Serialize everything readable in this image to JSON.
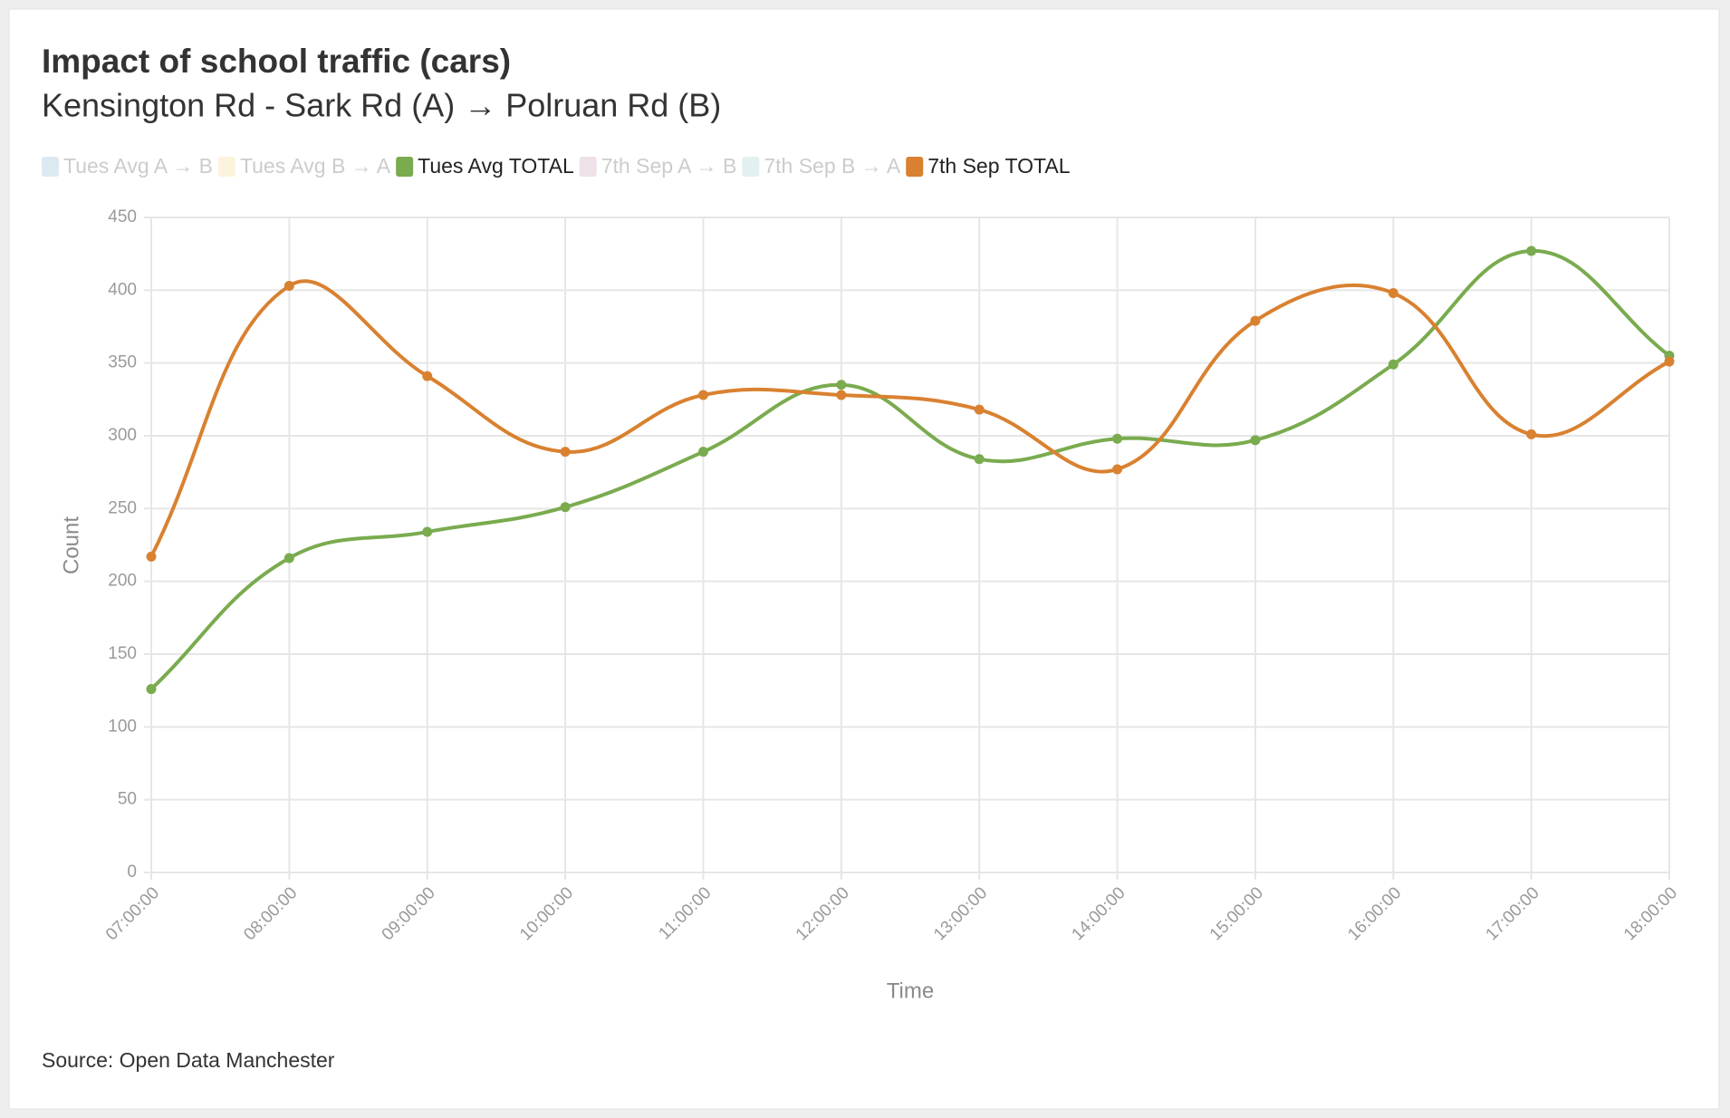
{
  "chart_data": {
    "type": "line",
    "title": "Impact of school traffic (cars)",
    "subtitle": "Kensington Rd - Sark Rd (A) → Polruan Rd (B)",
    "x_label": "Time",
    "y_label": "Count",
    "source": "Source: Open Data Manchester",
    "categories": [
      "07:00:00",
      "08:00:00",
      "09:00:00",
      "10:00:00",
      "11:00:00",
      "12:00:00",
      "13:00:00",
      "14:00:00",
      "15:00:00",
      "16:00:00",
      "17:00:00",
      "18:00:00"
    ],
    "series": [
      {
        "name": "Tues Avg A → B",
        "color": "#9fbfd8",
        "hidden": true,
        "values": [
          null,
          null,
          null,
          null,
          null,
          null,
          null,
          null,
          null,
          null,
          null,
          null
        ]
      },
      {
        "name": "Tues Avg B → A",
        "color": "#f6dc9c",
        "hidden": true,
        "values": [
          null,
          null,
          null,
          null,
          null,
          null,
          null,
          null,
          null,
          null,
          null,
          null
        ]
      },
      {
        "name": "Tues Avg TOTAL",
        "color": "#7aab4f",
        "hidden": false,
        "values": [
          126,
          216,
          234,
          251,
          289,
          335,
          284,
          298,
          297,
          349,
          427,
          355
        ]
      },
      {
        "name": "7th Sep A → B",
        "color": "#cfa9c0",
        "hidden": true,
        "values": [
          null,
          null,
          null,
          null,
          null,
          null,
          null,
          null,
          null,
          null,
          null,
          null
        ]
      },
      {
        "name": "7th Sep B → A",
        "color": "#a9d6d6",
        "hidden": true,
        "values": [
          null,
          null,
          null,
          null,
          null,
          null,
          null,
          null,
          null,
          null,
          null,
          null
        ]
      },
      {
        "name": "7th Sep TOTAL",
        "color": "#d98130",
        "hidden": false,
        "values": [
          217,
          403,
          341,
          289,
          328,
          328,
          318,
          277,
          379,
          398,
          301,
          351
        ]
      }
    ],
    "ylim": [
      0,
      450
    ],
    "yticks": [
      0,
      50,
      100,
      150,
      200,
      250,
      300,
      350,
      400,
      450
    ],
    "grid": true
  }
}
